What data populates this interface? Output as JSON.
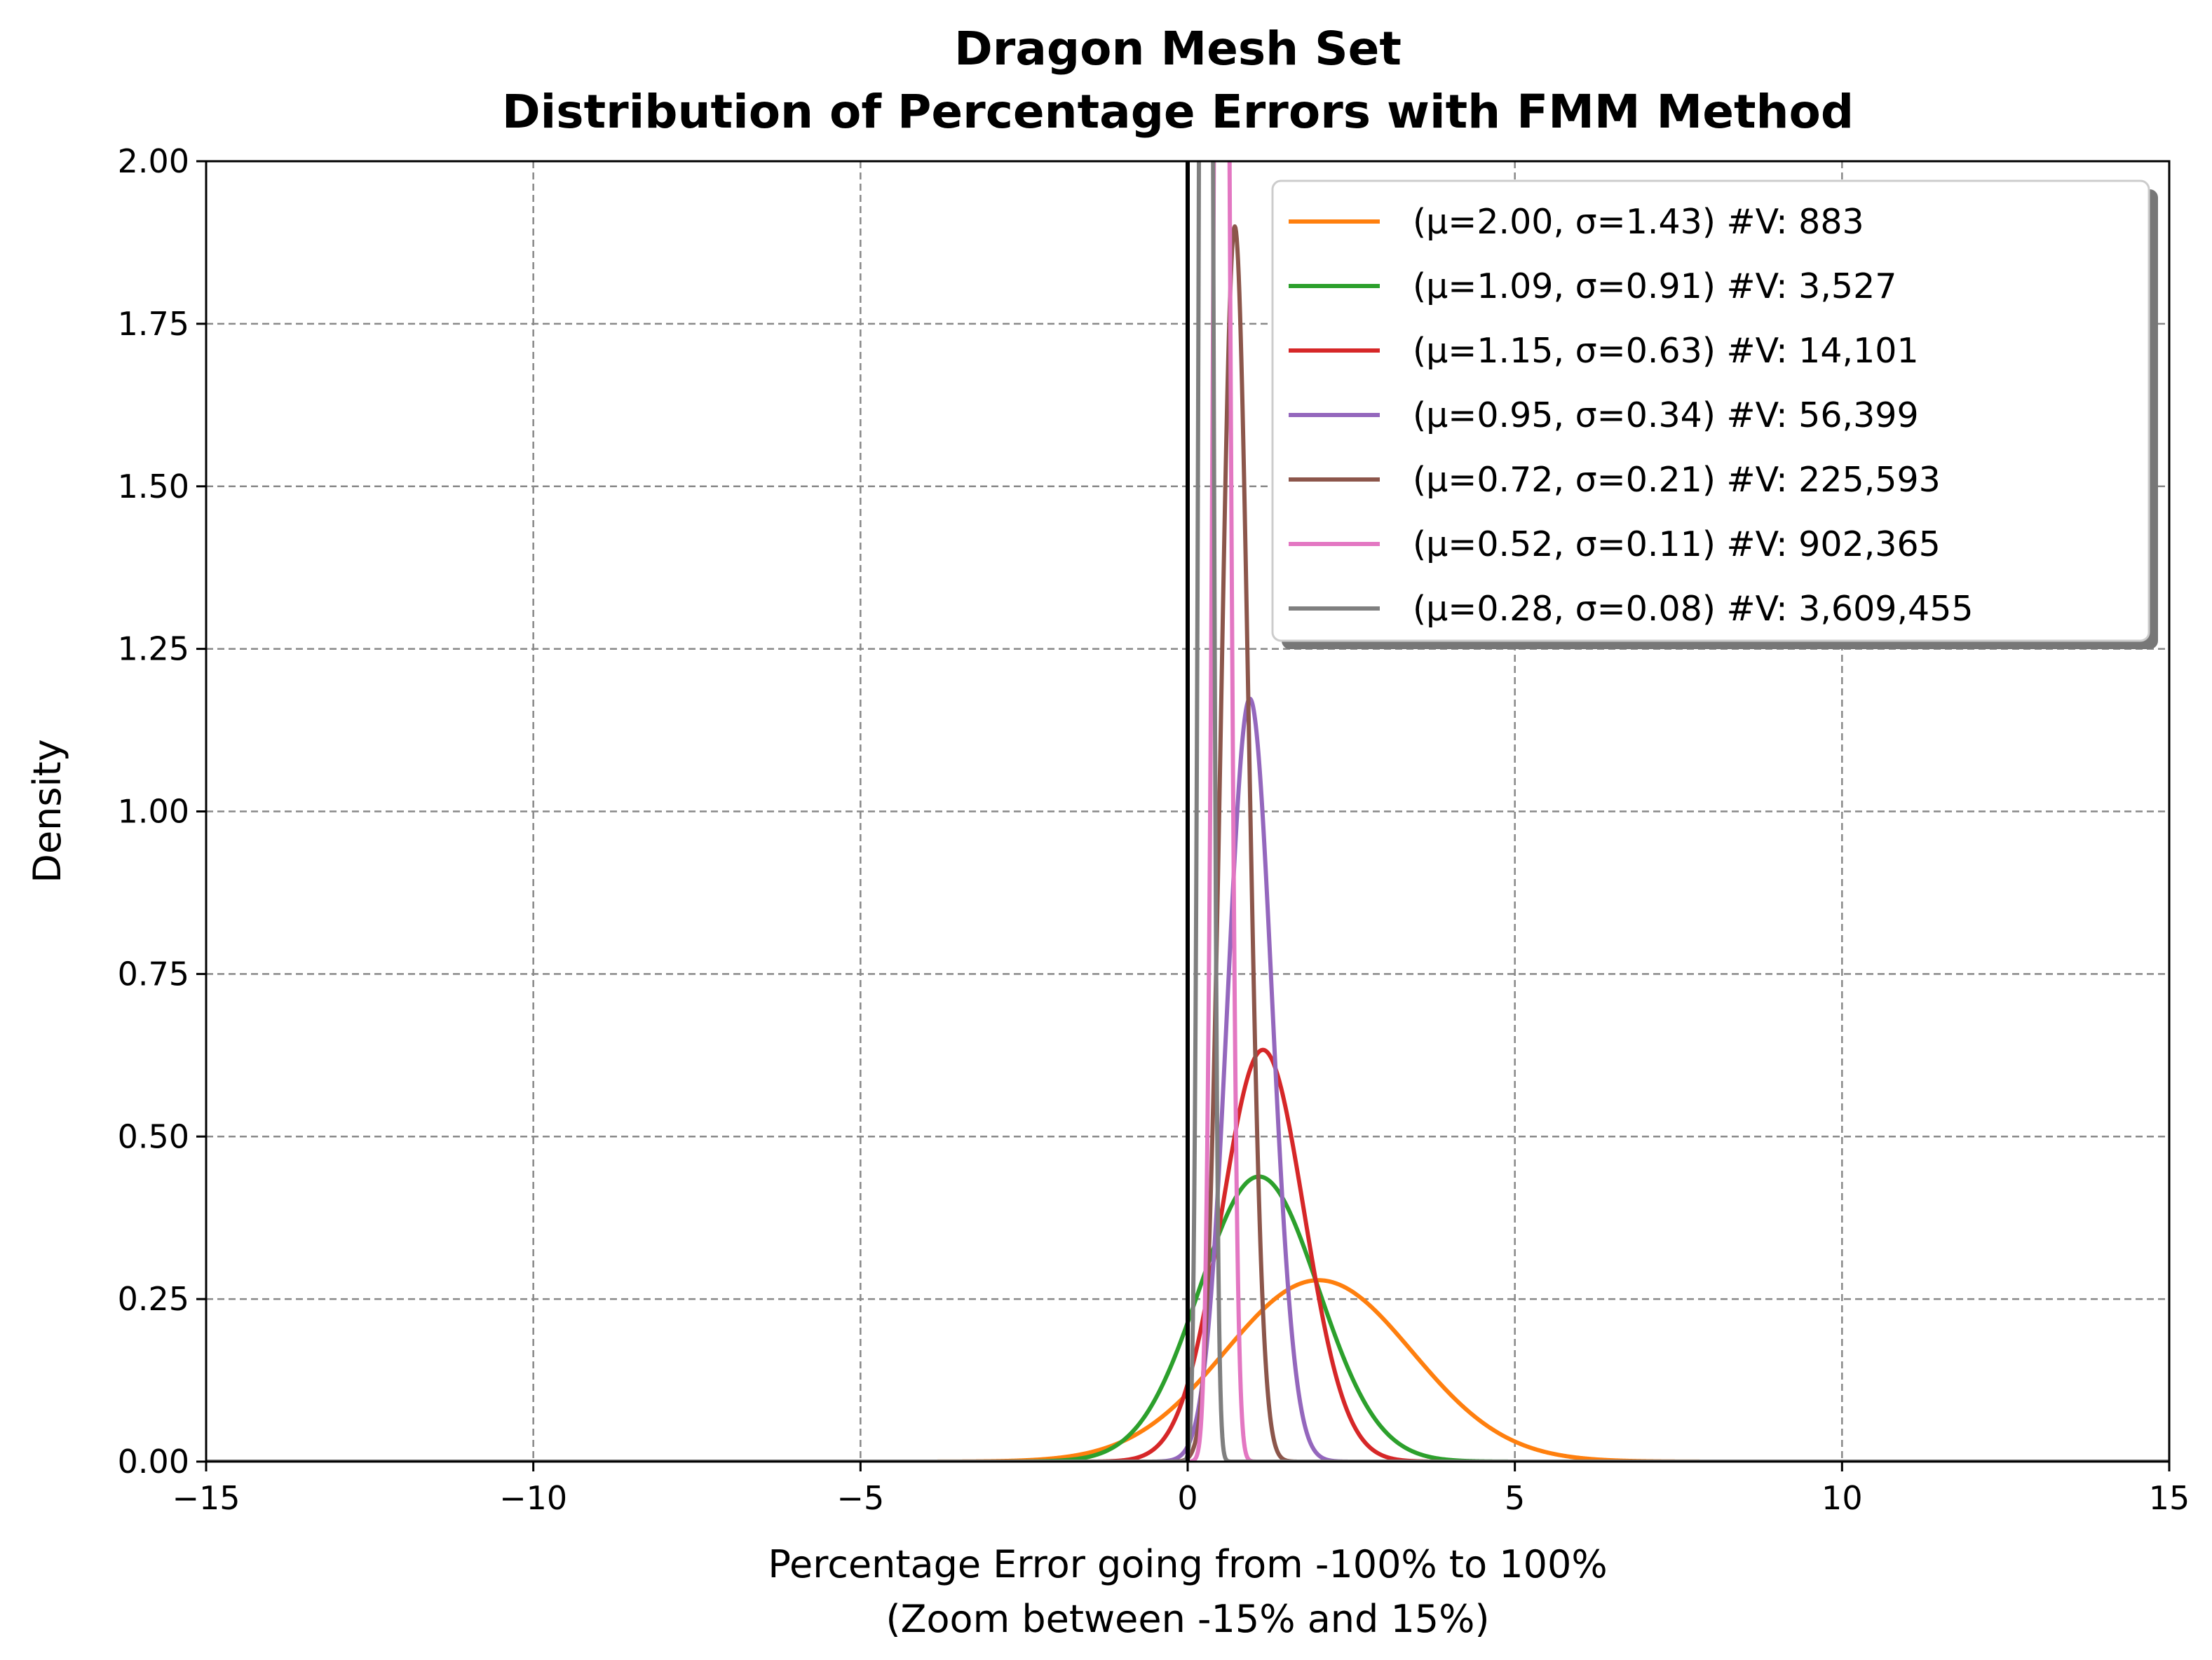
{
  "chart_data": {
    "type": "line",
    "title": "Dragon Mesh Set",
    "subtitle": "Distribution of Percentage Errors with FMM Method",
    "xlabel": "Percentage Error going from -100% to 100%",
    "xlabel_line2": "(Zoom between -15% and 15%)",
    "ylabel": "Density",
    "xlim": [
      -15,
      15
    ],
    "ylim": [
      0,
      2
    ],
    "x_ticks": [
      -15,
      -10,
      -5,
      0,
      5,
      10,
      15
    ],
    "x_tick_labels": [
      "−15",
      "−10",
      "−5",
      "0",
      "5",
      "10",
      "15"
    ],
    "y_ticks": [
      0,
      0.25,
      0.5,
      0.75,
      1.0,
      1.25,
      1.5,
      1.75,
      2.0
    ],
    "y_tick_labels": [
      "0.00",
      "0.25",
      "0.50",
      "0.75",
      "1.00",
      "1.25",
      "1.50",
      "1.75",
      "2.00"
    ],
    "grid": true,
    "legend_position": "top-right",
    "reference_line_x": 0,
    "series": [
      {
        "name": "(μ=2.00, σ=1.43) #V: 883",
        "mu": 2.0,
        "sigma": 1.43,
        "color": "#ff7f0e"
      },
      {
        "name": "(μ=1.09, σ=0.91) #V: 3,527",
        "mu": 1.09,
        "sigma": 0.91,
        "color": "#2ca02c"
      },
      {
        "name": "(μ=1.15, σ=0.63) #V: 14,101",
        "mu": 1.15,
        "sigma": 0.63,
        "color": "#d62728"
      },
      {
        "name": "(μ=0.95, σ=0.34) #V: 56,399",
        "mu": 0.95,
        "sigma": 0.34,
        "color": "#9467bd"
      },
      {
        "name": "(μ=0.72, σ=0.21) #V: 225,593",
        "mu": 0.72,
        "sigma": 0.21,
        "color": "#8c564b"
      },
      {
        "name": "(μ=0.52, σ=0.11) #V: 902,365",
        "mu": 0.52,
        "sigma": 0.11,
        "color": "#e377c2"
      },
      {
        "name": "(μ=0.28, σ=0.08) #V: 3,609,455",
        "mu": 0.28,
        "sigma": 0.08,
        "color": "#7f7f7f"
      }
    ]
  }
}
